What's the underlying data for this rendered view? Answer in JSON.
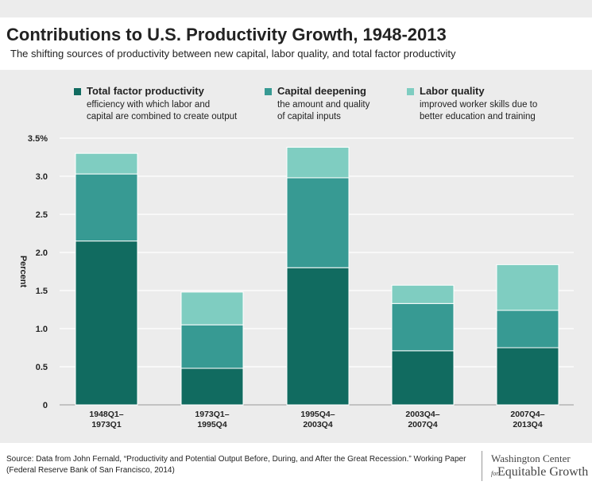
{
  "title": "Contributions to U.S. Productivity Growth, 1948-2013",
  "subtitle": "The shifting sources of productivity between new capital, labor quality, and total factor productivity",
  "legend": [
    {
      "name": "Total factor productivity",
      "desc1": "efficiency with which labor and",
      "desc2": "capital are combined to create output",
      "color": "#116b60"
    },
    {
      "name": "Capital deepening",
      "desc1": "the amount and quality",
      "desc2": "of capital inputs",
      "color": "#379a93"
    },
    {
      "name": "Labor quality",
      "desc1": "improved worker skills due to",
      "desc2": "better education and training",
      "color": "#7fcdc1"
    }
  ],
  "chart_data": {
    "type": "bar",
    "stacked": true,
    "categories": [
      [
        "1948Q1–",
        "1973Q1"
      ],
      [
        "1973Q1–",
        "1995Q4"
      ],
      [
        "1995Q4–",
        "2003Q4"
      ],
      [
        "2003Q4–",
        "2007Q4"
      ],
      [
        "2007Q4–",
        "2013Q4"
      ]
    ],
    "series": [
      {
        "name": "Total factor productivity",
        "color": "#116b60",
        "values": [
          2.15,
          0.48,
          1.8,
          0.71,
          0.75
        ]
      },
      {
        "name": "Capital deepening",
        "color": "#379a93",
        "values": [
          0.88,
          0.57,
          1.18,
          0.62,
          0.49
        ]
      },
      {
        "name": "Labor quality",
        "color": "#7fcdc1",
        "values": [
          0.27,
          0.43,
          0.4,
          0.24,
          0.6
        ]
      }
    ],
    "ylabel": "Percent",
    "ylim": [
      0,
      3.5
    ],
    "yticks": [
      {
        "value": 0,
        "label": "0"
      },
      {
        "value": 0.5,
        "label": "0.5"
      },
      {
        "value": 1.0,
        "label": "1.0"
      },
      {
        "value": 1.5,
        "label": "1.5"
      },
      {
        "value": 2.0,
        "label": "2.0"
      },
      {
        "value": 2.5,
        "label": "2.5"
      },
      {
        "value": 3.0,
        "label": "3.0"
      },
      {
        "value": 3.5,
        "label": "3.5%"
      }
    ],
    "grid": true
  },
  "source": {
    "label": "Source:",
    "text": "Data from John Fernald, “Productivity and Potential Output Before, During, and After the Great Recession.” Working Paper (Federal Reserve Bank of San Francisco, 2014)"
  },
  "logo": {
    "line1": "Washington Center",
    "for": "for",
    "line2": "Equitable Growth"
  }
}
